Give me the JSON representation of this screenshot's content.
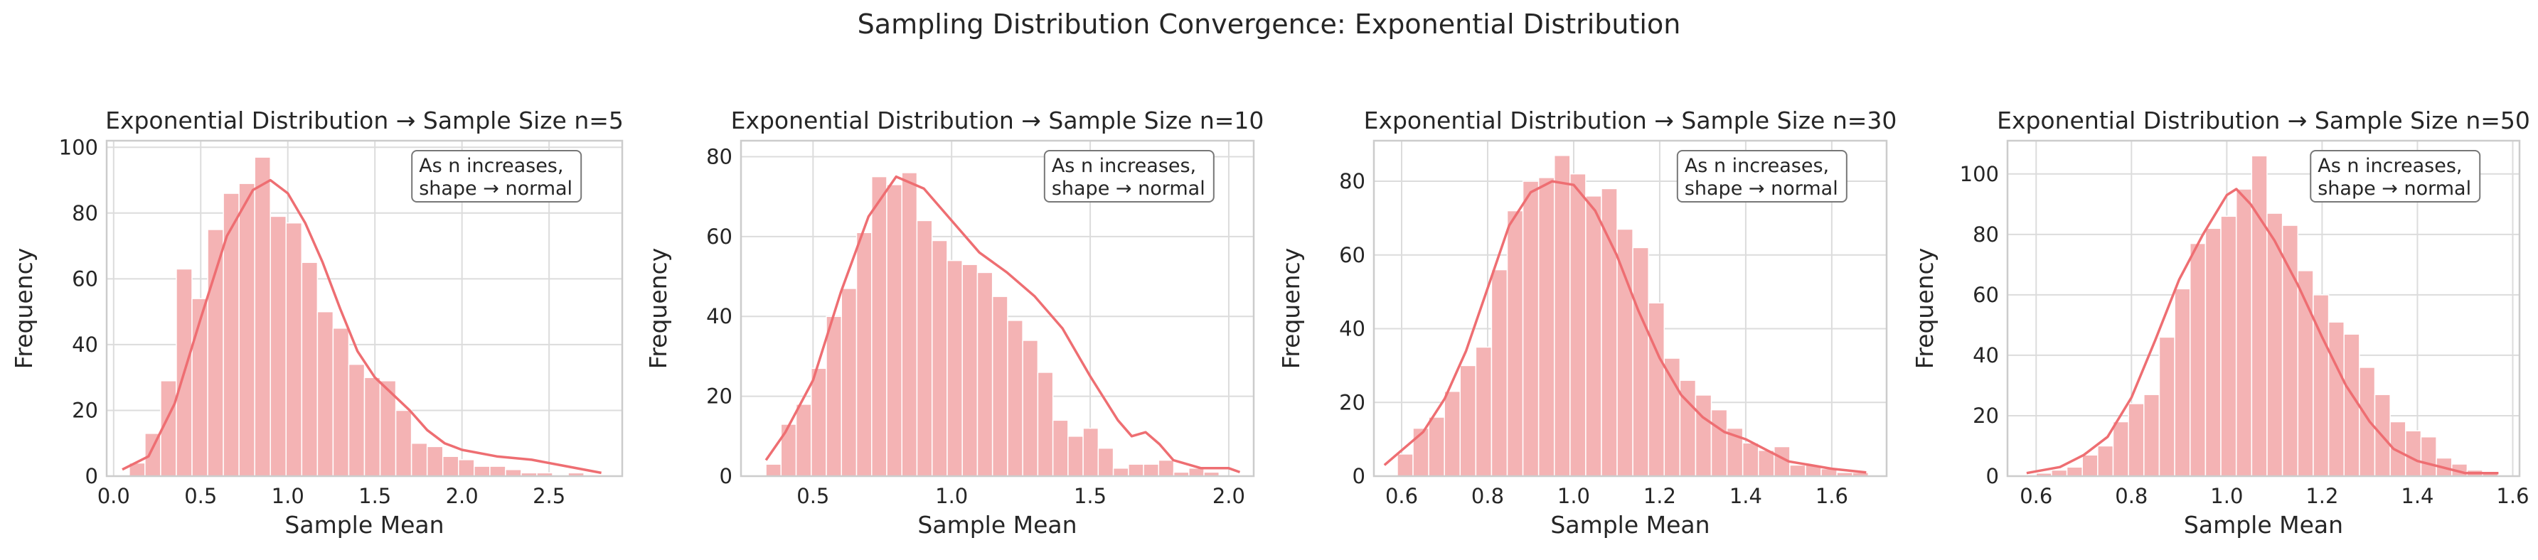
{
  "suptitle": "Sampling Distribution Convergence: Exponential Distribution",
  "colors": {
    "bar": "#f4b3b4",
    "kde": "#ee6e72",
    "grid": "#dcdcdc",
    "frame": "#cccccc",
    "text": "#262626"
  },
  "chart_data": [
    {
      "type": "bar",
      "title": "Exponential Distribution → Sample Size n=5",
      "xlabel": "Sample Mean",
      "ylabel": "Frequency",
      "annotation": "As n increases,\nshape → normal",
      "xlim": [
        -0.04,
        2.92
      ],
      "ylim": [
        0,
        102
      ],
      "xticks": [
        0.0,
        0.5,
        1.0,
        1.5,
        2.0,
        2.5
      ],
      "xtick_labels": [
        "0.0",
        "0.5",
        "1.0",
        "1.5",
        "2.0",
        "2.5"
      ],
      "yticks": [
        0,
        20,
        40,
        60,
        80,
        100
      ],
      "bin_start": 0.09,
      "bin_width": 0.09,
      "values": [
        4,
        13,
        29,
        63,
        54,
        75,
        86,
        89,
        97,
        79,
        77,
        65,
        50,
        45,
        34,
        30,
        29,
        20,
        10,
        9,
        6,
        5,
        3,
        3,
        2,
        1,
        1,
        0,
        1
      ],
      "kde": [
        [
          0.05,
          2
        ],
        [
          0.2,
          6
        ],
        [
          0.35,
          22
        ],
        [
          0.5,
          48
        ],
        [
          0.65,
          73
        ],
        [
          0.8,
          87
        ],
        [
          0.9,
          90
        ],
        [
          1.0,
          86
        ],
        [
          1.1,
          77
        ],
        [
          1.2,
          65
        ],
        [
          1.3,
          51
        ],
        [
          1.4,
          38
        ],
        [
          1.5,
          30
        ],
        [
          1.6,
          25
        ],
        [
          1.7,
          20
        ],
        [
          1.8,
          14
        ],
        [
          1.9,
          10
        ],
        [
          2.0,
          8
        ],
        [
          2.2,
          6
        ],
        [
          2.4,
          5
        ],
        [
          2.6,
          3
        ],
        [
          2.8,
          1
        ]
      ],
      "grid": true
    },
    {
      "type": "bar",
      "title": "Exponential Distribution → Sample Size n=10",
      "xlabel": "Sample Mean",
      "ylabel": "Frequency",
      "annotation": "As n increases,\nshape → normal",
      "xlim": [
        0.24,
        2.09
      ],
      "ylim": [
        0,
        84
      ],
      "xticks": [
        0.5,
        1.0,
        1.5,
        2.0
      ],
      "xtick_labels": [
        "0.5",
        "1.0",
        "1.5",
        "2.0"
      ],
      "yticks": [
        0,
        20,
        40,
        60,
        80
      ],
      "bin_start": 0.33,
      "bin_width": 0.0545,
      "values": [
        3,
        13,
        18,
        27,
        40,
        47,
        61,
        75,
        73,
        76,
        64,
        59,
        54,
        53,
        51,
        45,
        39,
        34,
        26,
        14,
        10,
        12,
        7,
        2,
        3,
        3,
        4,
        1,
        2,
        1
      ],
      "kde": [
        [
          0.33,
          4
        ],
        [
          0.4,
          11
        ],
        [
          0.5,
          24
        ],
        [
          0.6,
          46
        ],
        [
          0.7,
          65
        ],
        [
          0.8,
          75
        ],
        [
          0.9,
          72
        ],
        [
          1.0,
          64
        ],
        [
          1.1,
          56
        ],
        [
          1.2,
          51
        ],
        [
          1.3,
          45
        ],
        [
          1.4,
          37
        ],
        [
          1.5,
          25
        ],
        [
          1.6,
          14
        ],
        [
          1.65,
          10
        ],
        [
          1.7,
          11
        ],
        [
          1.75,
          8
        ],
        [
          1.8,
          4
        ],
        [
          1.9,
          2
        ],
        [
          2.0,
          2
        ],
        [
          2.04,
          1
        ]
      ],
      "grid": true
    },
    {
      "type": "bar",
      "title": "Exponential Distribution → Sample Size n=30",
      "xlabel": "Sample Mean",
      "ylabel": "Frequency",
      "annotation": "As n increases,\nshape → normal",
      "xlim": [
        0.5355,
        1.7275
      ],
      "ylim": [
        0,
        91
      ],
      "xticks": [
        0.6,
        0.8,
        1.0,
        1.2,
        1.4,
        1.6
      ],
      "xtick_labels": [
        "0.6",
        "0.8",
        "1.0",
        "1.2",
        "1.4",
        "1.6"
      ],
      "yticks": [
        0,
        20,
        40,
        60,
        80
      ],
      "bin_start": 0.59,
      "bin_width": 0.0365,
      "values": [
        6,
        13,
        16,
        23,
        30,
        35,
        56,
        72,
        80,
        81,
        87,
        82,
        76,
        78,
        67,
        62,
        47,
        32,
        26,
        22,
        18,
        13,
        9,
        7,
        8,
        3,
        3,
        2,
        1,
        1
      ],
      "kde": [
        [
          0.56,
          3
        ],
        [
          0.6,
          7
        ],
        [
          0.65,
          12
        ],
        [
          0.7,
          21
        ],
        [
          0.75,
          34
        ],
        [
          0.8,
          51
        ],
        [
          0.85,
          68
        ],
        [
          0.9,
          77
        ],
        [
          0.95,
          80
        ],
        [
          1.0,
          79
        ],
        [
          1.05,
          72
        ],
        [
          1.1,
          60
        ],
        [
          1.15,
          45
        ],
        [
          1.2,
          32
        ],
        [
          1.25,
          22
        ],
        [
          1.3,
          16
        ],
        [
          1.35,
          12
        ],
        [
          1.4,
          10
        ],
        [
          1.45,
          7
        ],
        [
          1.5,
          4
        ],
        [
          1.55,
          3
        ],
        [
          1.6,
          2
        ],
        [
          1.68,
          1
        ]
      ],
      "grid": true
    },
    {
      "type": "bar",
      "title": "Exponential Distribution → Sample Size n=50",
      "xlabel": "Sample Mean",
      "ylabel": "Frequency",
      "annotation": "As n increases,\nshape → normal",
      "xlim": [
        0.5399,
        1.6142
      ],
      "ylim": [
        0,
        111
      ],
      "xticks": [
        0.6,
        0.8,
        1.0,
        1.2,
        1.4,
        1.6
      ],
      "xtick_labels": [
        "0.6",
        "0.8",
        "1.0",
        "1.2",
        "1.4",
        "1.6"
      ],
      "yticks": [
        0,
        20,
        40,
        60,
        80,
        100
      ],
      "bin_start": 0.6,
      "bin_width": 0.0323,
      "values": [
        1,
        2,
        3,
        7,
        10,
        18,
        24,
        27,
        46,
        62,
        77,
        82,
        86,
        95,
        106,
        87,
        83,
        68,
        60,
        51,
        47,
        36,
        27,
        18,
        15,
        13,
        6,
        4,
        2,
        1
      ],
      "kde": [
        [
          0.58,
          1
        ],
        [
          0.65,
          3
        ],
        [
          0.7,
          7
        ],
        [
          0.75,
          13
        ],
        [
          0.8,
          26
        ],
        [
          0.85,
          45
        ],
        [
          0.9,
          65
        ],
        [
          0.95,
          80
        ],
        [
          1.0,
          93
        ],
        [
          1.02,
          95
        ],
        [
          1.05,
          90
        ],
        [
          1.1,
          78
        ],
        [
          1.15,
          63
        ],
        [
          1.2,
          46
        ],
        [
          1.25,
          30
        ],
        [
          1.3,
          18
        ],
        [
          1.35,
          9
        ],
        [
          1.4,
          5
        ],
        [
          1.45,
          3
        ],
        [
          1.5,
          1
        ],
        [
          1.57,
          1
        ]
      ],
      "grid": true
    }
  ]
}
